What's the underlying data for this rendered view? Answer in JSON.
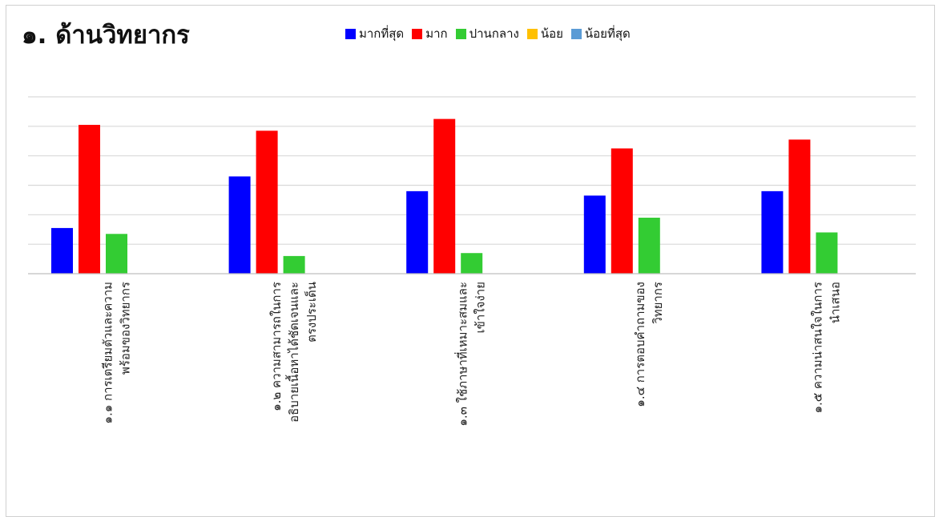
{
  "chart_data": {
    "type": "bar",
    "title": "๑. ด้านวิทยากร",
    "categories": [
      "๑.๑ การเตรียมตัวและความพร้อมของวิทยากร",
      "๑.๒ ความสามารถในการอธิบายเนื้อหาได้ชัดเจนและตรงประเด็น",
      "๑.๓ ใช้ภาษาที่เหมาะสมและเข้าใจง่าย",
      "๑.๔ การตอบคำถามของวิทยากร",
      "๑.๕ ความน่าสนใจในการนำเสนอ"
    ],
    "category_lines": [
      [
        "๑.๑ การเตรียมตัวและความ",
        "พร้อมของวิทยากร"
      ],
      [
        "๑.๒ ความสามารถในการ",
        "อธิบายเนื้อหาได้ชัดเจนและ",
        "ตรงประเด็น"
      ],
      [
        "๑.๓ ใช้ภาษาที่เหมาะสมและ",
        "เข้าใจง่าย"
      ],
      [
        "๑.๔ การตอบคำถามของ",
        "วิทยากร"
      ],
      [
        "๑.๕ ความน่าสนใจในการ",
        "นำเสนอ"
      ]
    ],
    "series": [
      {
        "name": "มากที่สุด",
        "color": "#0000FF",
        "values": [
          3.1,
          6.6,
          5.6,
          5.3,
          5.6
        ]
      },
      {
        "name": "มาก",
        "color": "#FF0000",
        "values": [
          10.1,
          9.7,
          10.5,
          8.5,
          9.1
        ]
      },
      {
        "name": "ปานกลาง",
        "color": "#33CC33",
        "values": [
          2.7,
          1.2,
          1.4,
          3.8,
          2.8
        ]
      },
      {
        "name": "น้อย",
        "color": "#FFC000",
        "values": [
          0,
          0,
          0,
          0,
          0
        ]
      },
      {
        "name": "น้อยที่สุด",
        "color": "#5B9BD5",
        "values": [
          0,
          0,
          0,
          0,
          0
        ]
      }
    ],
    "ylim": [
      0,
      12
    ],
    "y_gridlines": [
      2,
      4,
      6,
      8,
      10,
      12
    ],
    "y_tick_labels_shown": false,
    "grid": true,
    "legend_position": "top"
  }
}
